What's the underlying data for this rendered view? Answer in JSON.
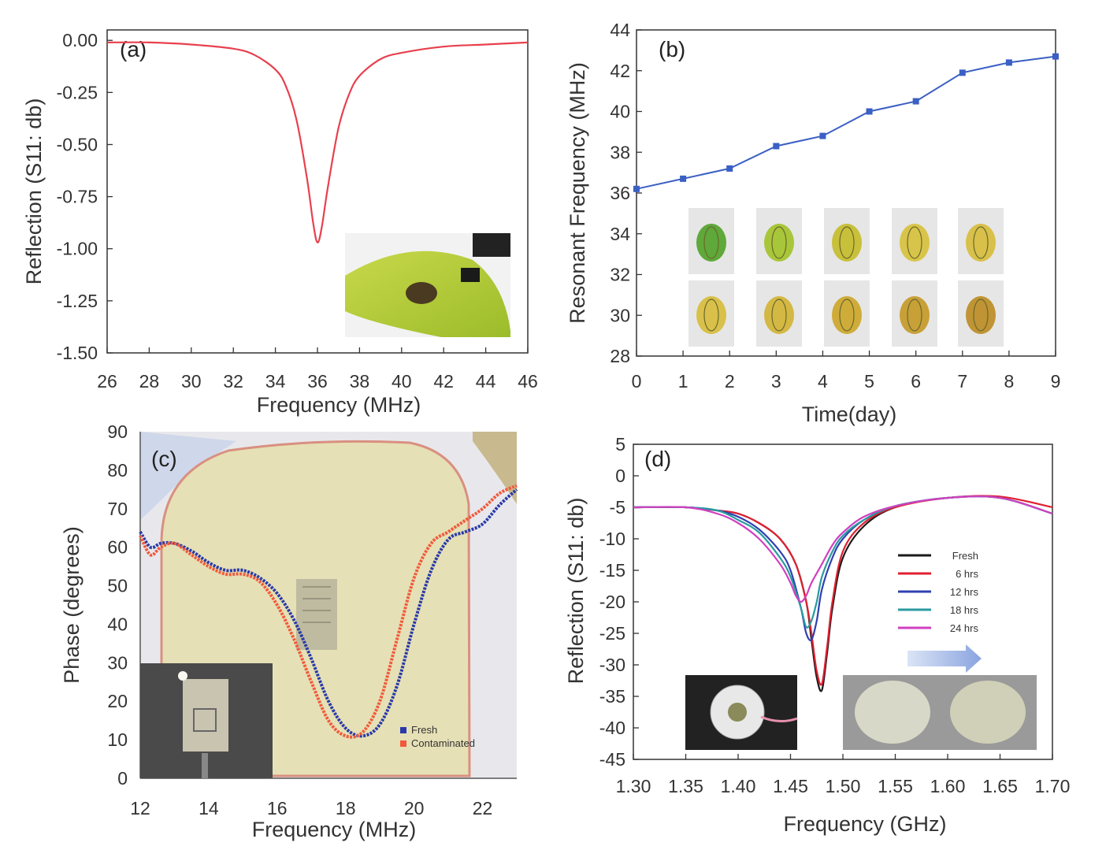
{
  "chart_data": [
    {
      "panel": "(a)",
      "type": "line",
      "xlabel": "Frequency (MHz)",
      "ylabel": "Reflection (S11: db)",
      "xlim": [
        26,
        46
      ],
      "ylim": [
        -1.5,
        0.05
      ],
      "xticks": [
        "26",
        "28",
        "30",
        "32",
        "34",
        "36",
        "38",
        "40",
        "42",
        "44",
        "46"
      ],
      "yticks": [
        "0.00",
        "-0.25",
        "-0.50",
        "-0.75",
        "-1.00",
        "-1.25",
        "-1.50"
      ],
      "series": [
        {
          "color": "#e8404e",
          "x": [
            26,
            28,
            30,
            32,
            33,
            34,
            34.5,
            35,
            35.5,
            35.8,
            36,
            36.2,
            36.5,
            37,
            37.5,
            38,
            39,
            40,
            42,
            44,
            46
          ],
          "y": [
            -0.01,
            -0.01,
            -0.02,
            -0.04,
            -0.07,
            -0.14,
            -0.22,
            -0.38,
            -0.66,
            -0.88,
            -0.97,
            -0.9,
            -0.7,
            -0.42,
            -0.26,
            -0.17,
            -0.09,
            -0.06,
            -0.03,
            -0.02,
            -0.01
          ]
        }
      ],
      "inset": "banana with sensor tag photo"
    },
    {
      "panel": "(b)",
      "type": "line",
      "xlabel": "Time(day)",
      "ylabel": "Resonant Frequency (MHz)",
      "xlim": [
        0,
        9
      ],
      "ylim": [
        28,
        44
      ],
      "xticks": [
        "0",
        "1",
        "2",
        "3",
        "4",
        "5",
        "6",
        "7",
        "8",
        "9"
      ],
      "yticks": [
        "28",
        "30",
        "32",
        "34",
        "36",
        "38",
        "40",
        "42",
        "44"
      ],
      "series": [
        {
          "color": "#3b5fc4",
          "x": [
            0,
            1,
            2,
            3,
            4,
            5,
            6,
            7,
            8,
            9
          ],
          "y": [
            36.2,
            36.7,
            37.2,
            38.3,
            38.8,
            40.0,
            40.5,
            41.9,
            42.4,
            42.7
          ]
        }
      ],
      "inset": "banana ripening photos, days 0-9"
    },
    {
      "panel": "(c)",
      "type": "line",
      "xlabel": "Frequency (MHz)",
      "ylabel": "Phase (degrees)",
      "xlim": [
        12,
        23
      ],
      "ylim": [
        0,
        90
      ],
      "xticks": [
        "12",
        "14",
        "16",
        "18",
        "20",
        "22"
      ],
      "yticks": [
        "0",
        "10",
        "20",
        "30",
        "40",
        "50",
        "60",
        "70",
        "80",
        "90"
      ],
      "series": [
        {
          "name": "Fresh",
          "color": "#2a3aa8",
          "x": [
            12,
            12.3,
            12.6,
            13,
            13.5,
            14,
            14.5,
            15,
            15.5,
            16,
            16.5,
            17,
            17.5,
            18,
            18.5,
            19,
            19.5,
            20,
            20.5,
            21,
            21.5,
            22,
            22.5,
            23
          ],
          "y": [
            64,
            60,
            61,
            61,
            59,
            56,
            54,
            54,
            52,
            48,
            41,
            31,
            20,
            13,
            11,
            14,
            24,
            40,
            54,
            62,
            64,
            66,
            71,
            75
          ]
        },
        {
          "name": "Contaminated",
          "color": "#f05a3c",
          "x": [
            12,
            12.3,
            12.6,
            13,
            13.5,
            14,
            14.5,
            15,
            15.5,
            16,
            16.5,
            17,
            17.5,
            18,
            18.5,
            19,
            19.5,
            20,
            20.5,
            21,
            21.5,
            22,
            22.5,
            23
          ],
          "y": [
            63,
            58,
            60,
            61,
            58,
            55,
            53,
            53,
            51,
            45,
            36,
            25,
            15,
            11,
            12,
            20,
            36,
            52,
            61,
            64,
            67,
            70,
            74,
            76
          ]
        }
      ],
      "legend": [
        "Fresh",
        "Contaminated"
      ],
      "inset": "sensor tag on contaminated sample photo"
    },
    {
      "panel": "(d)",
      "type": "line",
      "xlabel": "Frequency (GHz)",
      "ylabel": "Reflection (S11: db)",
      "xlim": [
        1.3,
        1.7
      ],
      "ylim": [
        -45,
        5
      ],
      "xticks": [
        "1.30",
        "1.35",
        "1.40",
        "1.45",
        "1.50",
        "1.55",
        "1.60",
        "1.65",
        "1.70"
      ],
      "yticks": [
        "5",
        "0",
        "-5",
        "-10",
        "-15",
        "-20",
        "-25",
        "-30",
        "-35",
        "-40",
        "-45"
      ],
      "series": [
        {
          "name": "Fresh",
          "color": "#1a1a1a",
          "x": [
            1.3,
            1.35,
            1.38,
            1.4,
            1.42,
            1.44,
            1.455,
            1.465,
            1.47,
            1.475,
            1.48,
            1.485,
            1.49,
            1.5,
            1.52,
            1.55,
            1.6,
            1.65,
            1.7
          ],
          "y": [
            -5,
            -5,
            -5.5,
            -6,
            -7.5,
            -10,
            -14,
            -20,
            -26,
            -32,
            -34,
            -28,
            -21,
            -13,
            -8,
            -5,
            -3.5,
            -3.5,
            -6
          ]
        },
        {
          "name": "6 hrs",
          "color": "#e02030",
          "x": [
            1.3,
            1.35,
            1.38,
            1.4,
            1.42,
            1.44,
            1.455,
            1.465,
            1.47,
            1.475,
            1.48,
            1.485,
            1.49,
            1.5,
            1.52,
            1.55,
            1.6,
            1.65,
            1.7
          ],
          "y": [
            -5,
            -5,
            -5.5,
            -6,
            -7.5,
            -10,
            -14,
            -20,
            -25,
            -31,
            -33,
            -27,
            -20,
            -12,
            -7.5,
            -5,
            -3.5,
            -3.3,
            -5
          ]
        },
        {
          "name": "12 hrs",
          "color": "#3040b0",
          "x": [
            1.3,
            1.35,
            1.38,
            1.4,
            1.42,
            1.44,
            1.45,
            1.46,
            1.465,
            1.47,
            1.475,
            1.48,
            1.49,
            1.5,
            1.52,
            1.55,
            1.6,
            1.65,
            1.7
          ],
          "y": [
            -5,
            -5,
            -5.5,
            -6.5,
            -8.5,
            -12,
            -15,
            -21,
            -25,
            -26,
            -23,
            -18,
            -13,
            -10,
            -7,
            -4.8,
            -3.5,
            -3.5,
            -6
          ]
        },
        {
          "name": "18 hrs",
          "color": "#2a9aa0",
          "x": [
            1.3,
            1.35,
            1.38,
            1.4,
            1.42,
            1.44,
            1.45,
            1.46,
            1.465,
            1.47,
            1.475,
            1.48,
            1.49,
            1.5,
            1.52,
            1.55,
            1.6,
            1.65,
            1.7
          ],
          "y": [
            -5,
            -5,
            -5.5,
            -7,
            -9,
            -13,
            -16,
            -21,
            -24,
            -23,
            -20,
            -16,
            -12,
            -9.5,
            -7,
            -4.8,
            -3.5,
            -3.5,
            -6
          ]
        },
        {
          "name": "24 hrs",
          "color": "#d040c0",
          "x": [
            1.3,
            1.35,
            1.38,
            1.4,
            1.42,
            1.44,
            1.45,
            1.455,
            1.46,
            1.465,
            1.47,
            1.48,
            1.49,
            1.5,
            1.52,
            1.55,
            1.6,
            1.65,
            1.7
          ],
          "y": [
            -5,
            -5,
            -6,
            -7.5,
            -10,
            -14,
            -17,
            -19,
            -20,
            -19,
            -17,
            -14,
            -11,
            -9,
            -6.5,
            -4.8,
            -3.5,
            -3.5,
            -6
          ]
        }
      ],
      "legend": [
        "Fresh",
        "6 hrs",
        "12 hrs",
        "18 hrs",
        "24 hrs"
      ],
      "inset": "sensor photos showing color change"
    }
  ]
}
